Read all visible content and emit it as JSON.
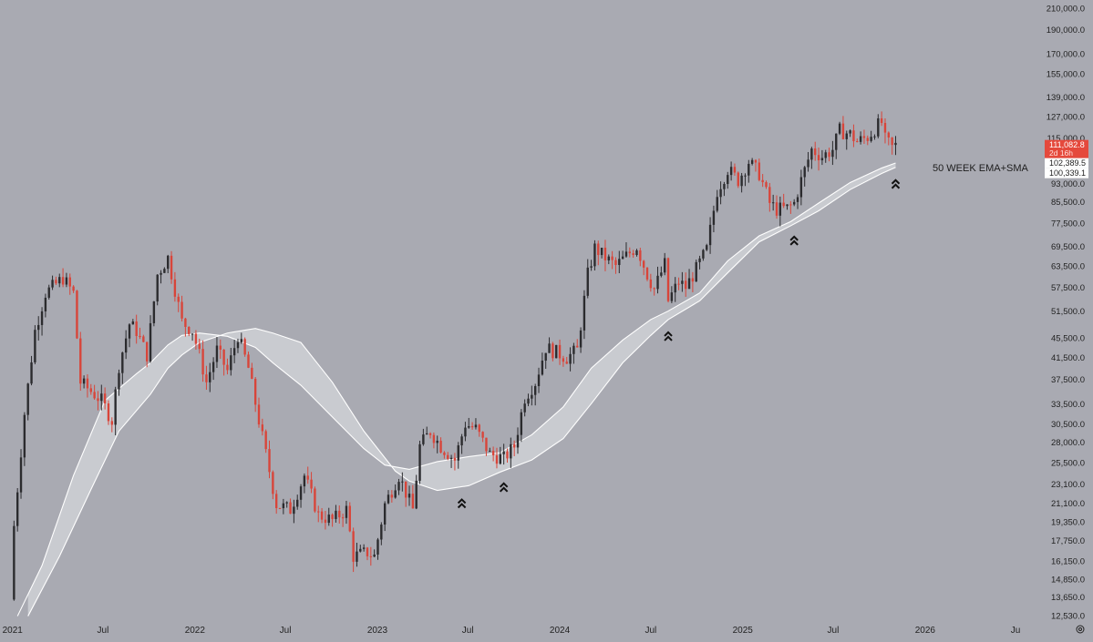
{
  "colors": {
    "background": "#a9aab2",
    "bull": "#2b2b2e",
    "bear": "#d8453a",
    "band_fill": "#d4d5da",
    "band_line": "#ffffff",
    "axis_text": "#222222",
    "price_tag": "#e5493c",
    "arrow": "#111111"
  },
  "chart_data": {
    "type": "candlestick",
    "scale": "log",
    "ylim": [
      12000,
      212000
    ],
    "y_ticks": [
      "210,000.0",
      "190,000.0",
      "170,000.0",
      "155,000.0",
      "139,000.0",
      "127,000.0",
      "115,000.0",
      "103,000.0",
      "93,000.0",
      "85,500.0",
      "77,500.0",
      "69,500.0",
      "63,500.0",
      "57,500.0",
      "51,500.0",
      "45,500.0",
      "41,500.0",
      "37,500.0",
      "33,500.0",
      "30,500.0",
      "28,000.0",
      "25,500.0",
      "23,100.0",
      "21,100.0",
      "19,350.0",
      "17,750.0",
      "16,150.0",
      "14,850.0",
      "13,650.0",
      "12,530.0"
    ],
    "x_range": [
      "2020-12-07",
      "2026-08-10"
    ],
    "x_ticks": [
      {
        "date": "2021-01-01",
        "label": "2021"
      },
      {
        "date": "2021-07-01",
        "label": "Jul"
      },
      {
        "date": "2022-01-01",
        "label": "2022"
      },
      {
        "date": "2022-07-01",
        "label": "Jul"
      },
      {
        "date": "2023-01-01",
        "label": "2023"
      },
      {
        "date": "2023-07-01",
        "label": "Jul"
      },
      {
        "date": "2024-01-01",
        "label": "2024"
      },
      {
        "date": "2024-07-01",
        "label": "Jul"
      },
      {
        "date": "2025-01-01",
        "label": "2025"
      },
      {
        "date": "2025-07-01",
        "label": "Jul"
      },
      {
        "date": "2026-01-01",
        "label": "2026"
      },
      {
        "date": "2026-07-01",
        "label": "Ju"
      }
    ],
    "price_path": [
      [
        "2020-12-28",
        13500
      ],
      [
        "2021-01-04",
        19000
      ],
      [
        "2021-01-25",
        32000
      ],
      [
        "2021-02-15",
        47000
      ],
      [
        "2021-03-08",
        56000
      ],
      [
        "2021-04-12",
        60000
      ],
      [
        "2021-05-03",
        56000
      ],
      [
        "2021-05-17",
        37000
      ],
      [
        "2021-06-07",
        35500
      ],
      [
        "2021-06-28",
        34000
      ],
      [
        "2021-07-19",
        31000
      ],
      [
        "2021-08-02",
        40000
      ],
      [
        "2021-08-23",
        48500
      ],
      [
        "2021-09-06",
        47000
      ],
      [
        "2021-09-27",
        42000
      ],
      [
        "2021-10-18",
        61000
      ],
      [
        "2021-11-08",
        66000
      ],
      [
        "2021-11-22",
        57000
      ],
      [
        "2021-12-06",
        49000
      ],
      [
        "2021-12-27",
        47000
      ],
      [
        "2022-01-10",
        42000
      ],
      [
        "2022-01-24",
        37000
      ],
      [
        "2022-02-14",
        43000
      ],
      [
        "2022-03-07",
        39000
      ],
      [
        "2022-03-28",
        46000
      ],
      [
        "2022-04-18",
        39500
      ],
      [
        "2022-05-09",
        31000
      ],
      [
        "2022-06-13",
        21000
      ],
      [
        "2022-07-11",
        20500
      ],
      [
        "2022-08-08",
        24000
      ],
      [
        "2022-09-05",
        20000
      ],
      [
        "2022-10-03",
        19500
      ],
      [
        "2022-10-31",
        20500
      ],
      [
        "2022-11-14",
        16500
      ],
      [
        "2022-12-12",
        16800
      ],
      [
        "2022-12-26",
        16500
      ],
      [
        "2023-01-16",
        21000
      ],
      [
        "2023-02-13",
        24000
      ],
      [
        "2023-03-13",
        20500
      ],
      [
        "2023-03-27",
        27500
      ],
      [
        "2023-04-17",
        29500
      ],
      [
        "2023-05-08",
        27500
      ],
      [
        "2023-06-05",
        25800
      ],
      [
        "2023-06-26",
        30500
      ],
      [
        "2023-07-17",
        29800
      ],
      [
        "2023-08-14",
        26500
      ],
      [
        "2023-09-11",
        26000
      ],
      [
        "2023-10-02",
        27500
      ],
      [
        "2023-10-23",
        34500
      ],
      [
        "2023-11-13",
        37000
      ],
      [
        "2023-12-04",
        43500
      ],
      [
        "2023-12-25",
        42500
      ],
      [
        "2024-01-15",
        41500
      ],
      [
        "2024-02-05",
        43000
      ],
      [
        "2024-02-26",
        61000
      ],
      [
        "2024-03-11",
        69000
      ],
      [
        "2024-04-01",
        66000
      ],
      [
        "2024-04-22",
        63500
      ],
      [
        "2024-05-13",
        66500
      ],
      [
        "2024-06-03",
        69500
      ],
      [
        "2024-06-24",
        61000
      ],
      [
        "2024-07-08",
        57000
      ],
      [
        "2024-07-29",
        64000
      ],
      [
        "2024-08-05",
        54000
      ],
      [
        "2024-08-26",
        59000
      ],
      [
        "2024-09-09",
        57500
      ],
      [
        "2024-09-30",
        62500
      ],
      [
        "2024-10-21",
        68500
      ],
      [
        "2024-11-11",
        90000
      ],
      [
        "2024-12-02",
        99500
      ],
      [
        "2024-12-23",
        94500
      ],
      [
        "2025-01-13",
        103000
      ],
      [
        "2025-02-03",
        97500
      ],
      [
        "2025-02-24",
        85000
      ],
      [
        "2025-03-10",
        82500
      ],
      [
        "2025-03-31",
        83000
      ],
      [
        "2025-04-14",
        85000
      ],
      [
        "2025-04-28",
        94500
      ],
      [
        "2025-05-19",
        109000
      ],
      [
        "2025-06-09",
        105500
      ],
      [
        "2025-06-30",
        109000
      ],
      [
        "2025-07-14",
        119000
      ],
      [
        "2025-08-04",
        117000
      ],
      [
        "2025-08-18",
        113000
      ],
      [
        "2025-09-08",
        115500
      ],
      [
        "2025-09-29",
        122000
      ],
      [
        "2025-10-06",
        123500
      ],
      [
        "2025-10-13",
        114000
      ],
      [
        "2025-10-27",
        110000
      ],
      [
        "2025-11-03",
        111000
      ]
    ],
    "ema50": [
      [
        "2021-01-11",
        12500
      ],
      [
        "2021-03-01",
        15800
      ],
      [
        "2021-05-03",
        24000
      ],
      [
        "2021-07-05",
        34000
      ],
      [
        "2021-09-06",
        38500
      ],
      [
        "2021-10-04",
        40500
      ],
      [
        "2021-11-08",
        44000
      ],
      [
        "2021-12-06",
        46000
      ],
      [
        "2022-01-10",
        46500
      ],
      [
        "2022-03-07",
        45800
      ],
      [
        "2022-05-02",
        43500
      ],
      [
        "2022-06-06",
        40500
      ],
      [
        "2022-08-01",
        36500
      ],
      [
        "2022-10-03",
        31500
      ],
      [
        "2022-12-05",
        27200
      ],
      [
        "2023-01-16",
        25200
      ],
      [
        "2023-03-06",
        24700
      ],
      [
        "2023-05-01",
        25600
      ],
      [
        "2023-07-03",
        26200
      ],
      [
        "2023-09-04",
        26700
      ],
      [
        "2023-11-06",
        29000
      ],
      [
        "2024-01-08",
        33000
      ],
      [
        "2024-03-04",
        39500
      ],
      [
        "2024-05-06",
        45000
      ],
      [
        "2024-07-01",
        49500
      ],
      [
        "2024-08-05",
        51500
      ],
      [
        "2024-10-07",
        56000
      ],
      [
        "2024-12-02",
        65000
      ],
      [
        "2025-02-03",
        73000
      ],
      [
        "2025-04-07",
        78000
      ],
      [
        "2025-06-02",
        85000
      ],
      [
        "2025-08-04",
        93500
      ],
      [
        "2025-10-06",
        100000
      ],
      [
        "2025-11-03",
        102389.5
      ]
    ],
    "sma50": [
      [
        "2021-02-01",
        12500
      ],
      [
        "2021-04-05",
        16500
      ],
      [
        "2021-06-07",
        22500
      ],
      [
        "2021-08-02",
        29500
      ],
      [
        "2021-10-04",
        35000
      ],
      [
        "2021-11-08",
        39500
      ],
      [
        "2021-12-06",
        42000
      ],
      [
        "2022-01-10",
        44500
      ],
      [
        "2022-03-07",
        46500
      ],
      [
        "2022-05-02",
        47500
      ],
      [
        "2022-06-06",
        46500
      ],
      [
        "2022-08-01",
        44500
      ],
      [
        "2022-10-03",
        37000
      ],
      [
        "2022-12-05",
        29500
      ],
      [
        "2023-02-06",
        24500
      ],
      [
        "2023-03-06",
        23400
      ],
      [
        "2023-05-01",
        22400
      ],
      [
        "2023-07-03",
        22900
      ],
      [
        "2023-09-04",
        24400
      ],
      [
        "2023-11-06",
        25800
      ],
      [
        "2024-01-08",
        28500
      ],
      [
        "2024-03-04",
        33500
      ],
      [
        "2024-05-06",
        40500
      ],
      [
        "2024-07-01",
        46000
      ],
      [
        "2024-08-05",
        49500
      ],
      [
        "2024-10-07",
        54000
      ],
      [
        "2024-12-02",
        61500
      ],
      [
        "2025-02-03",
        71000
      ],
      [
        "2025-04-07",
        76500
      ],
      [
        "2025-06-02",
        82000
      ],
      [
        "2025-08-04",
        90500
      ],
      [
        "2025-10-06",
        97500
      ],
      [
        "2025-11-03",
        100339.1
      ]
    ],
    "arrow_markers": [
      "2023-06-19",
      "2023-09-11",
      "2024-08-05",
      "2025-04-14",
      "2025-11-03"
    ],
    "annotation": "50 WEEK EMA+SMA",
    "price_tags": [
      {
        "value": 111082.8,
        "label": "111,082.8",
        "sublabel": "2d 16h",
        "style": "last"
      },
      {
        "value": 102389.5,
        "label": "102,389.5",
        "style": "plain"
      },
      {
        "value": 100339.1,
        "label": "100,339.1",
        "style": "plain"
      }
    ]
  }
}
